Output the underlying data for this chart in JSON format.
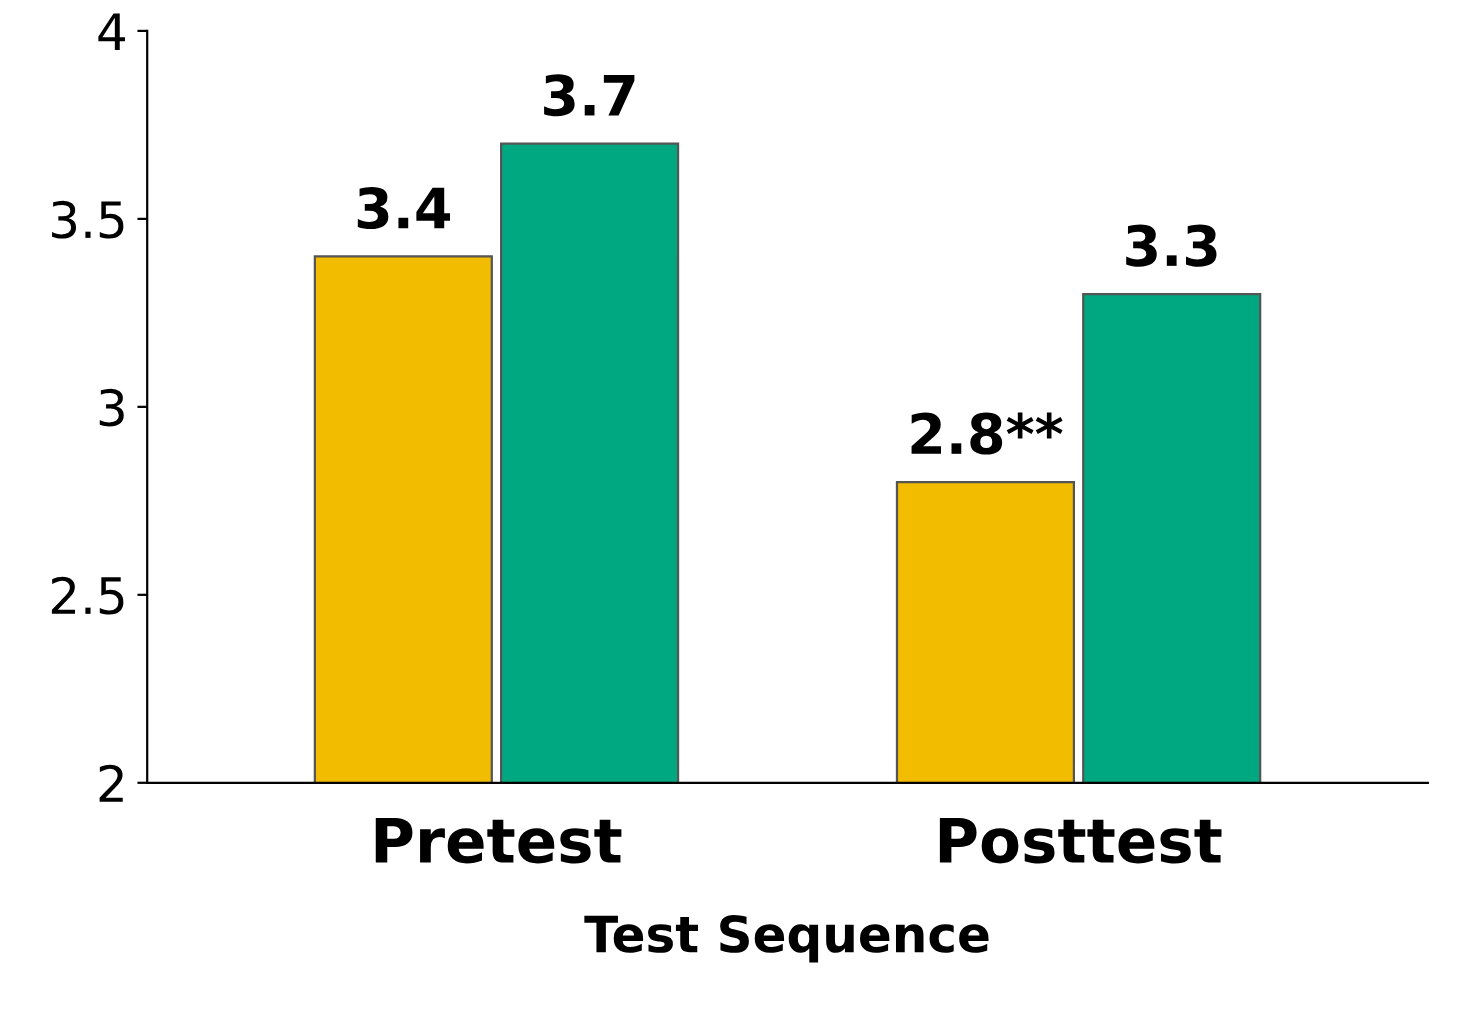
{
  "chart_data": {
    "type": "bar",
    "xlabel": "Test Sequence",
    "categories": [
      "Pretest",
      "Posttest"
    ],
    "series": [
      {
        "color": "#f2bc00",
        "values": [
          3.4,
          2.8
        ],
        "value_labels": [
          "3.4",
          "2.8**"
        ]
      },
      {
        "color": "#00a882",
        "values": [
          3.7,
          3.3
        ],
        "value_labels": [
          "3.7",
          "3.3"
        ]
      }
    ],
    "ylim": [
      2,
      4
    ],
    "yticks": [
      2,
      2.5,
      3,
      3.5,
      4
    ]
  }
}
